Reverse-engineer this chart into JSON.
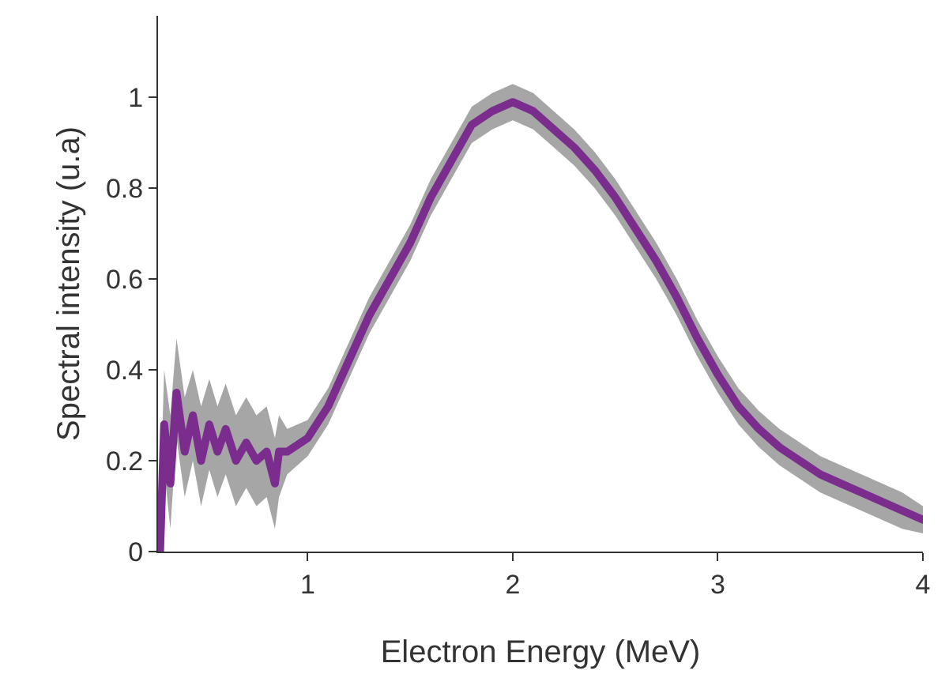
{
  "chart_data": {
    "type": "line",
    "xlabel": "Electron Energy (MeV)",
    "ylabel": "Spectral intensity (u.a)",
    "xlim": [
      0.27,
      4
    ],
    "ylim": [
      0,
      1.18
    ],
    "xticks": [
      1,
      2,
      3,
      4
    ],
    "yticks": [
      0,
      0.2,
      0.4,
      0.6,
      0.8,
      1
    ],
    "grid": false,
    "marker": "none",
    "line_style": "solid",
    "series": [
      {
        "color": "#7b2d8e",
        "x": [
          0.28,
          0.3,
          0.33,
          0.36,
          0.4,
          0.44,
          0.48,
          0.52,
          0.56,
          0.6,
          0.65,
          0.7,
          0.75,
          0.8,
          0.84,
          0.86,
          0.9,
          1.0,
          1.1,
          1.2,
          1.3,
          1.4,
          1.5,
          1.6,
          1.7,
          1.8,
          1.9,
          2.0,
          2.1,
          2.2,
          2.3,
          2.4,
          2.5,
          2.6,
          2.7,
          2.8,
          2.9,
          3.0,
          3.1,
          3.2,
          3.3,
          3.4,
          3.5,
          3.6,
          3.7,
          3.8,
          3.9,
          4.0
        ],
        "values": [
          0.0,
          0.28,
          0.15,
          0.35,
          0.22,
          0.3,
          0.2,
          0.28,
          0.22,
          0.27,
          0.2,
          0.24,
          0.2,
          0.22,
          0.15,
          0.22,
          0.22,
          0.25,
          0.32,
          0.42,
          0.52,
          0.6,
          0.68,
          0.78,
          0.86,
          0.94,
          0.97,
          0.99,
          0.97,
          0.93,
          0.89,
          0.84,
          0.78,
          0.71,
          0.64,
          0.56,
          0.47,
          0.39,
          0.32,
          0.27,
          0.23,
          0.2,
          0.17,
          0.15,
          0.13,
          0.11,
          0.09,
          0.07
        ],
        "lower": [
          0.0,
          0.18,
          0.05,
          0.25,
          0.12,
          0.2,
          0.1,
          0.18,
          0.12,
          0.17,
          0.1,
          0.14,
          0.1,
          0.12,
          0.05,
          0.12,
          0.17,
          0.21,
          0.28,
          0.38,
          0.48,
          0.56,
          0.64,
          0.74,
          0.82,
          0.9,
          0.93,
          0.95,
          0.93,
          0.89,
          0.85,
          0.8,
          0.74,
          0.67,
          0.6,
          0.52,
          0.43,
          0.35,
          0.28,
          0.23,
          0.19,
          0.16,
          0.13,
          0.11,
          0.09,
          0.07,
          0.05,
          0.04
        ],
        "upper": [
          0.1,
          0.4,
          0.3,
          0.47,
          0.34,
          0.4,
          0.32,
          0.38,
          0.32,
          0.37,
          0.3,
          0.34,
          0.3,
          0.32,
          0.25,
          0.3,
          0.27,
          0.29,
          0.36,
          0.46,
          0.56,
          0.64,
          0.72,
          0.82,
          0.9,
          0.98,
          1.01,
          1.03,
          1.01,
          0.97,
          0.93,
          0.88,
          0.82,
          0.75,
          0.68,
          0.6,
          0.51,
          0.43,
          0.36,
          0.31,
          0.27,
          0.24,
          0.21,
          0.19,
          0.17,
          0.15,
          0.13,
          0.1
        ]
      }
    ]
  }
}
